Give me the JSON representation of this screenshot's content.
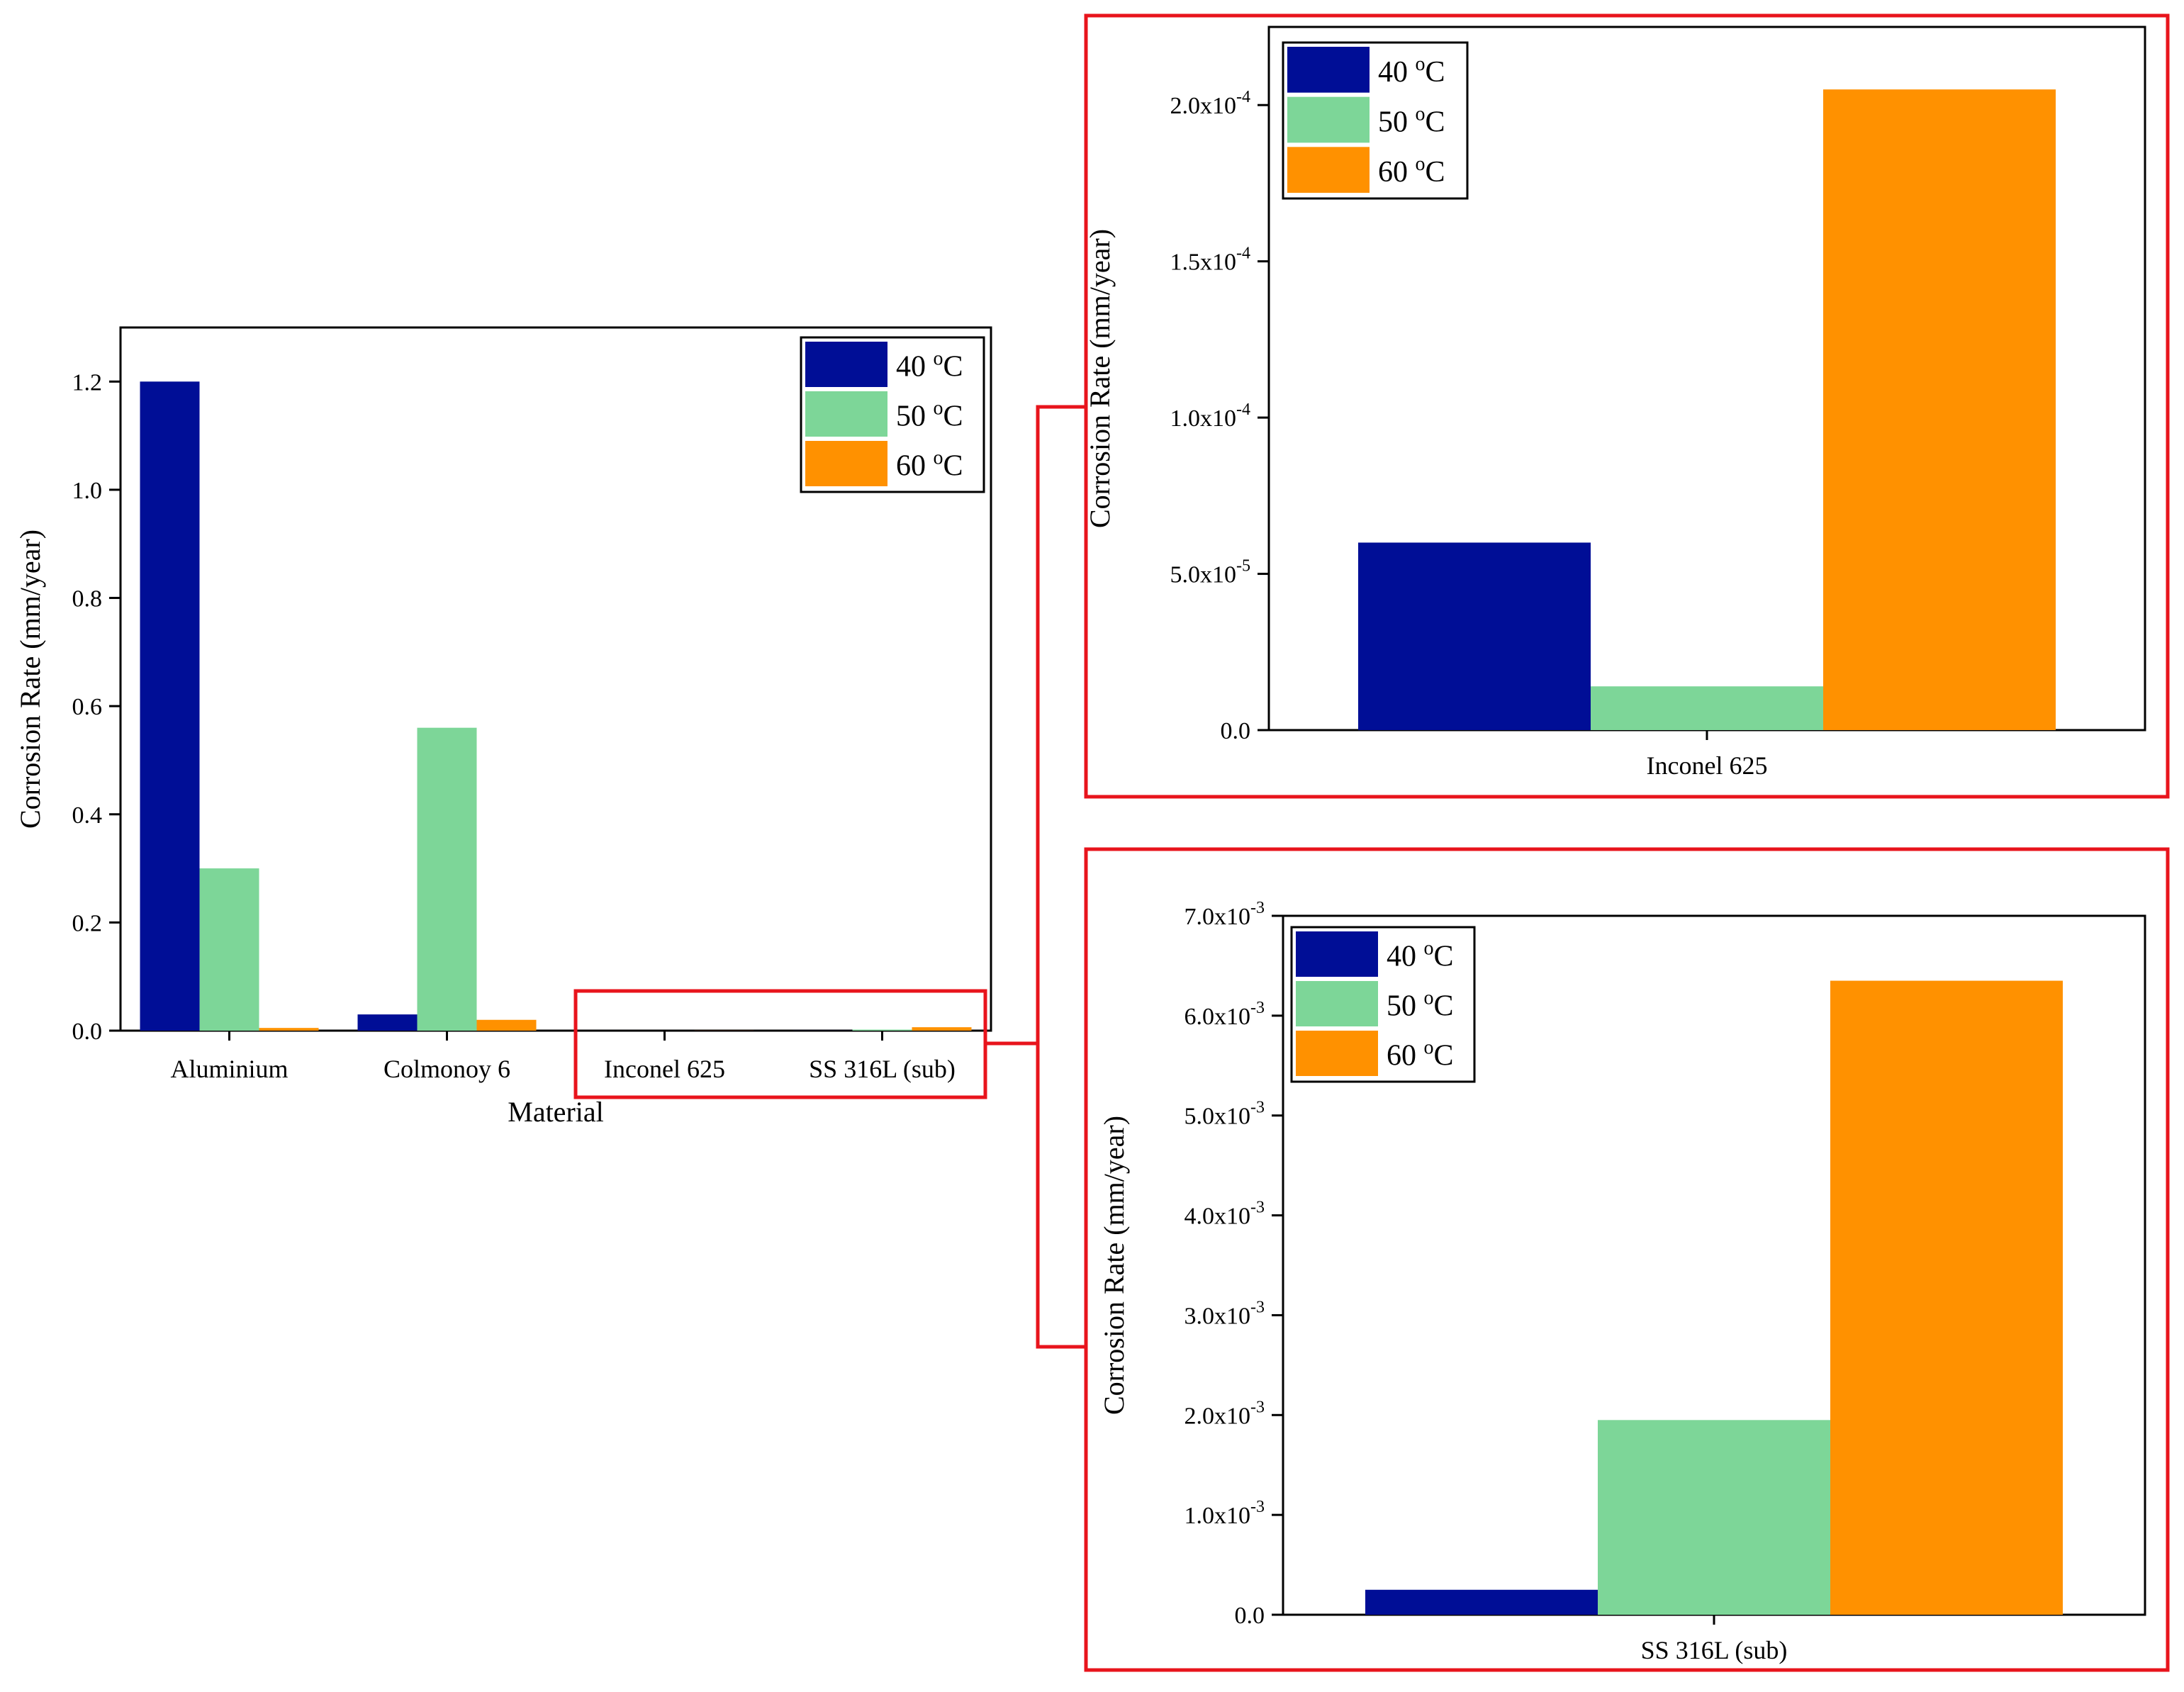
{
  "colors": {
    "c40": "#000e96",
    "c50": "#7dd698",
    "c60": "#ff9100",
    "highlight": "#e8141c"
  },
  "chart_data": [
    {
      "type": "bar",
      "id": "main",
      "categories": [
        "Aluminium",
        "Colmonoy 6",
        "Inconel 625",
        "SS 316L (sub)"
      ],
      "series": [
        {
          "name": "40 °C",
          "values": [
            1.2,
            0.03,
            6e-05,
            0.00025
          ]
        },
        {
          "name": "50 °C",
          "values": [
            0.3,
            0.56,
            1.4e-05,
            0.00195
          ]
        },
        {
          "name": "60 °C",
          "values": [
            0.005,
            0.02,
            0.000205,
            0.00635
          ]
        }
      ],
      "xlabel": "Material",
      "ylabel": "Corrosion Rate (mm/year)",
      "ylim": [
        0,
        1.3
      ],
      "yticks": [
        0.0,
        0.2,
        0.4,
        0.6,
        0.8,
        1.0,
        1.2
      ],
      "ytick_labels": [
        "0.0",
        "0.2",
        "0.4",
        "0.6",
        "0.8",
        "1.0",
        "1.2"
      ],
      "legend": [
        "40 °C",
        "50 °C",
        "60 °C"
      ],
      "legend_position": "top-right",
      "grid": false
    },
    {
      "type": "bar",
      "id": "inset-inconel",
      "categories": [
        "Inconel 625"
      ],
      "series": [
        {
          "name": "40 °C",
          "values": [
            6e-05
          ]
        },
        {
          "name": "50 °C",
          "values": [
            1.4e-05
          ]
        },
        {
          "name": "60 °C",
          "values": [
            0.000205
          ]
        }
      ],
      "xlabel": "",
      "ylabel": "Corrosion Rate (mm/year)",
      "ylim": [
        0,
        0.000225
      ],
      "yticks": [
        0,
        5e-05,
        0.0001,
        0.00015,
        0.0002
      ],
      "ytick_labels": [
        {
          "mantissa": "0.0",
          "exp": ""
        },
        {
          "mantissa": "5.0x10",
          "exp": "-5"
        },
        {
          "mantissa": "1.0x10",
          "exp": "-4"
        },
        {
          "mantissa": "1.5x10",
          "exp": "-4"
        },
        {
          "mantissa": "2.0x10",
          "exp": "-4"
        }
      ],
      "legend": [
        "40 °C",
        "50 °C",
        "60 °C"
      ],
      "legend_position": "top-left",
      "grid": false
    },
    {
      "type": "bar",
      "id": "inset-ss316l",
      "categories": [
        "SS 316L (sub)"
      ],
      "series": [
        {
          "name": "40 °C",
          "values": [
            0.00025
          ]
        },
        {
          "name": "50 °C",
          "values": [
            0.00195
          ]
        },
        {
          "name": "60 °C",
          "values": [
            0.00635
          ]
        }
      ],
      "xlabel": "",
      "ylabel": "Corrosion Rate (mm/year)",
      "ylim": [
        0,
        0.007
      ],
      "yticks": [
        0,
        0.001,
        0.002,
        0.003,
        0.004,
        0.005,
        0.006,
        0.007
      ],
      "ytick_labels": [
        {
          "mantissa": "0.0",
          "exp": ""
        },
        {
          "mantissa": "1.0x10",
          "exp": "-3"
        },
        {
          "mantissa": "2.0x10",
          "exp": "-3"
        },
        {
          "mantissa": "3.0x10",
          "exp": "-3"
        },
        {
          "mantissa": "4.0x10",
          "exp": "-3"
        },
        {
          "mantissa": "5.0x10",
          "exp": "-3"
        },
        {
          "mantissa": "6.0x10",
          "exp": "-3"
        },
        {
          "mantissa": "7.0x10",
          "exp": "-3"
        }
      ],
      "legend": [
        "40 °C",
        "50 °C",
        "60 °C"
      ],
      "legend_position": "top-left",
      "grid": false
    }
  ]
}
